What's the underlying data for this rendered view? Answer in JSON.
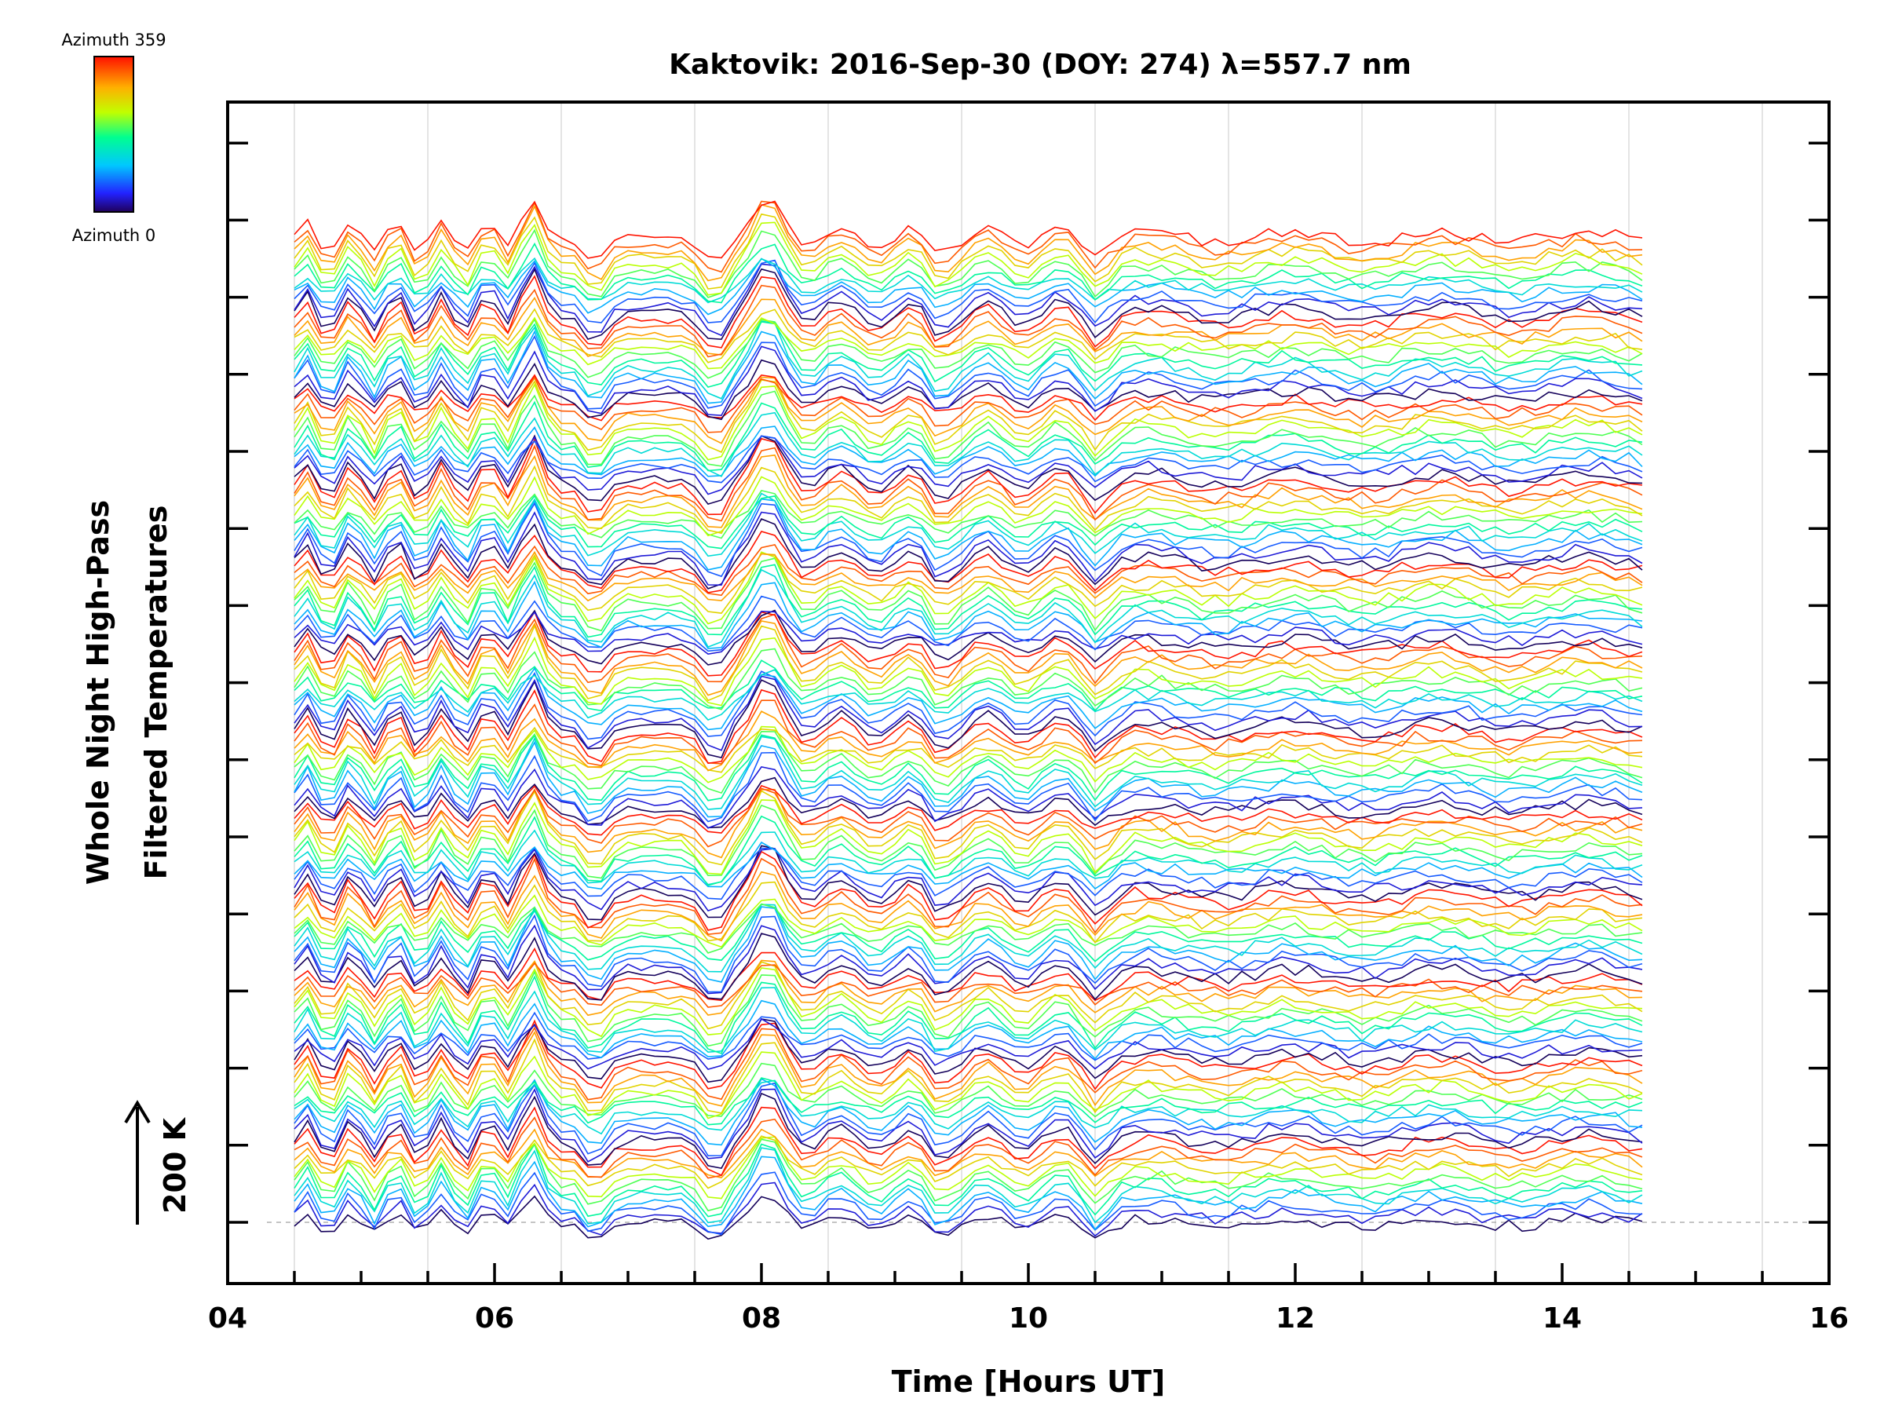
{
  "chart_data": {
    "type": "line",
    "title": "Kaktovik: 2016-Sep-30 (DOY: 274) λ=557.7 nm",
    "xlabel": "Time [Hours UT]",
    "ylabel_line1": "Whole Night High-Pass",
    "ylabel_line2": "Filtered Temperatures",
    "xlim": [
      4,
      16
    ],
    "x_tick_labels": [
      "04",
      "06",
      "08",
      "10",
      "12",
      "14",
      "16"
    ],
    "x_tick_values": [
      4,
      6,
      8,
      10,
      12,
      14,
      16
    ],
    "grid": "vertical-minor",
    "scale_bar_label": "200 K",
    "colorbar": {
      "top_label": "Azimuth 359",
      "bottom_label": "Azimuth 0",
      "colormap": "rainbow",
      "position": "top-left"
    },
    "series_count": 144,
    "series_offset_step_K": 25,
    "time_start": 4.5,
    "time_end": 14.6,
    "reference_line": "dashed-baseline",
    "colors": {
      "azimuth_0": "#1a1a6e",
      "azimuth_90": "#00e0e0",
      "azimuth_180": "#c8f000",
      "azimuth_359": "#ff3c00"
    }
  }
}
